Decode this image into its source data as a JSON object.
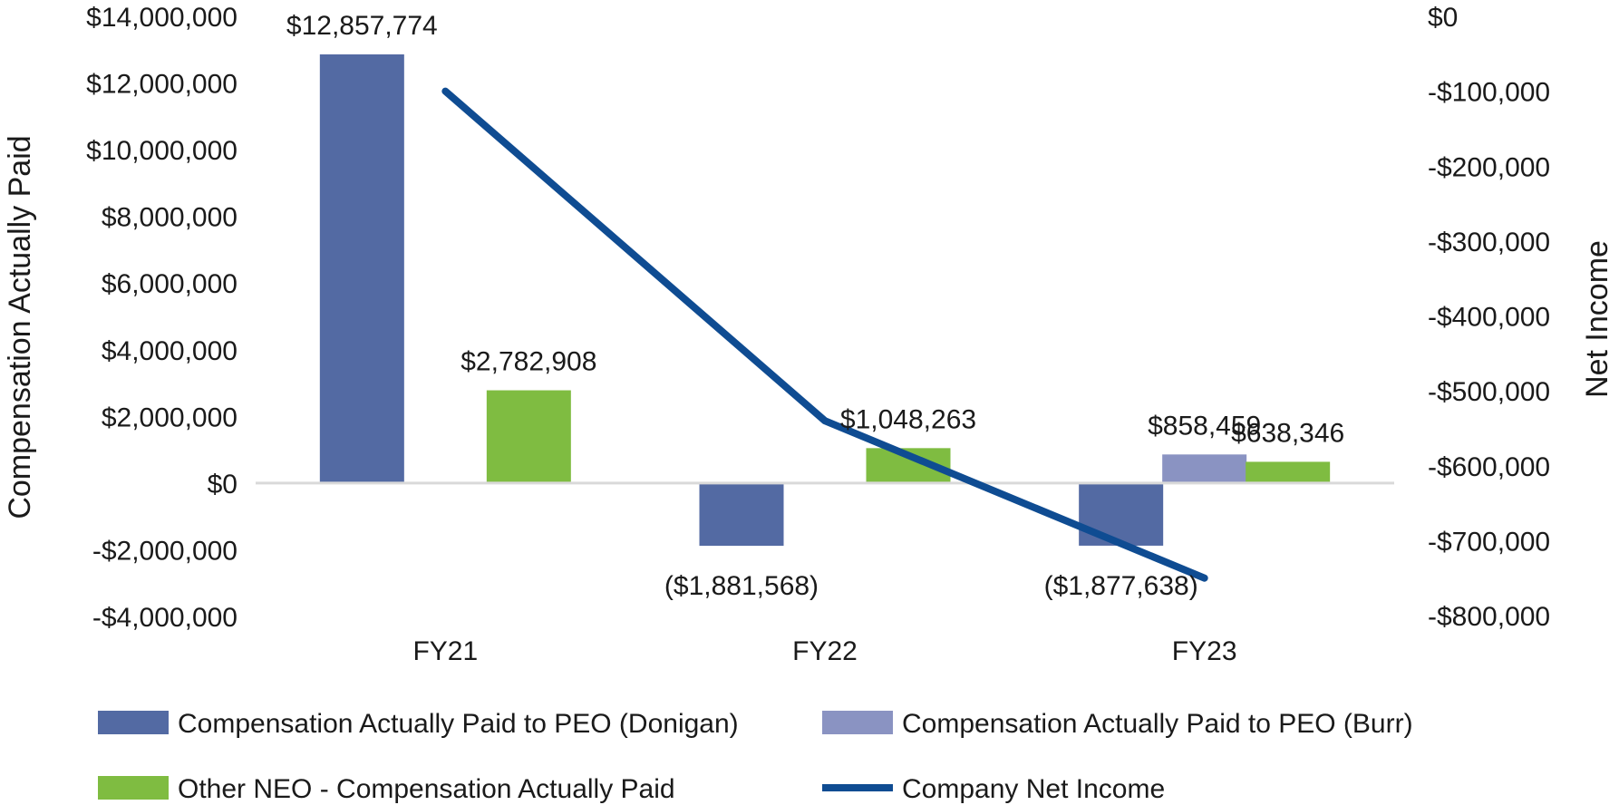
{
  "chart_data": {
    "type": "bar",
    "categories": [
      "FY21",
      "FY22",
      "FY23"
    ],
    "ylabel": "Compensation Actually Paid",
    "y2label": "Net Income",
    "ylim": [
      -4000000,
      14000000
    ],
    "y2lim": [
      -800000,
      0
    ],
    "y_ticks": [
      14000000,
      12000000,
      10000000,
      8000000,
      6000000,
      4000000,
      2000000,
      0,
      -2000000,
      -4000000
    ],
    "y_tick_labels": [
      "$14,000,000",
      "$12,000,000",
      "$10,000,000",
      "$8,000,000",
      "$6,000,000",
      "$4,000,000",
      "$2,000,000",
      "$0",
      "-$2,000,000",
      "-$4,000,000"
    ],
    "y2_ticks": [
      0,
      -100000,
      -200000,
      -300000,
      -400000,
      -500000,
      -600000,
      -700000,
      -800000
    ],
    "y2_tick_labels": [
      "$0",
      "-$100,000",
      "-$200,000",
      "-$300,000",
      "-$400,000",
      "-$500,000",
      "-$600,000",
      "-$700,000",
      "-$800,000"
    ],
    "grid": false,
    "legend_position": "bottom",
    "series": [
      {
        "name": "Compensation Actually Paid to PEO (Donigan)",
        "type": "bar",
        "axis": "left",
        "color": "#536aa3",
        "values": [
          12857774,
          -1881568,
          -1877638
        ],
        "labels": [
          "$12,857,774",
          "($1,881,568)",
          "($1,877,638)"
        ]
      },
      {
        "name": "Compensation Actually Paid to PEO (Burr)",
        "type": "bar",
        "axis": "left",
        "color": "#8a93c2",
        "values": [
          null,
          null,
          858459
        ],
        "labels": [
          "",
          "",
          "$858,459"
        ]
      },
      {
        "name": "Other NEO - Compensation Actually Paid",
        "type": "bar",
        "axis": "left",
        "color": "#7fbc41",
        "values": [
          2782908,
          1048263,
          638346
        ],
        "labels": [
          "$2,782,908",
          "$1,048,263",
          "$638,346"
        ]
      },
      {
        "name": "Company Net Income",
        "type": "line",
        "axis": "right",
        "color": "#0f4c92",
        "values": [
          -100000,
          -540000,
          -750000
        ]
      }
    ]
  }
}
